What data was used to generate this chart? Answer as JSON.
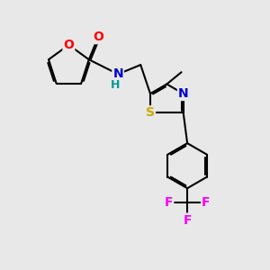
{
  "bg_color": "#e8e8e8",
  "bond_color": "#000000",
  "bond_width": 1.5,
  "dbo": 0.06,
  "atom_colors": {
    "O": "#ff0000",
    "N": "#0000cc",
    "S": "#ccaa00",
    "F": "#ff00ff",
    "C": "#000000",
    "H": "#009999"
  },
  "font_size": 10,
  "small_font_size": 9
}
